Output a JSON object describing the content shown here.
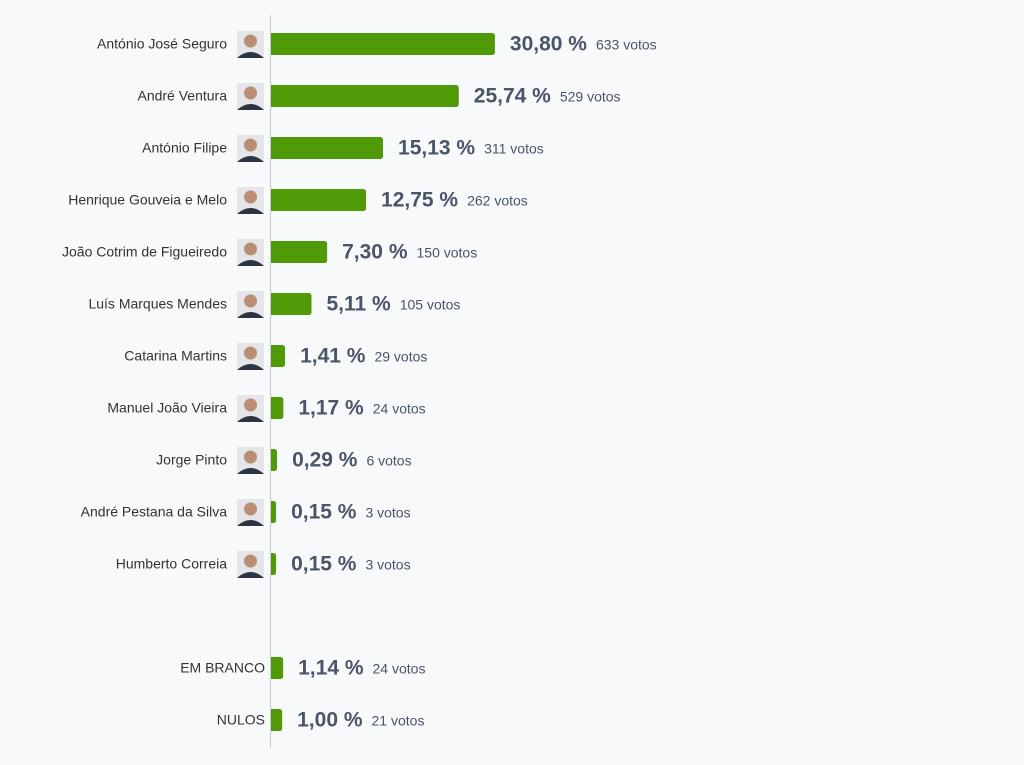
{
  "chart_data": [
    {
      "type": "bar",
      "orientation": "horizontal",
      "color": "#4f9a06",
      "photos": true,
      "categories": [
        "António José Seguro",
        "André Ventura",
        "António Filipe",
        "Henrique Gouveia e Melo",
        "João Cotrim de Figueiredo",
        "Luís Marques Mendes",
        "Catarina Martins",
        "Manuel João Vieira",
        "Jorge Pinto",
        "André Pestana da Silva",
        "Humberto Correia"
      ],
      "values": [
        30.8,
        25.74,
        15.13,
        12.75,
        7.3,
        5.11,
        1.41,
        1.17,
        0.29,
        0.15,
        0.15
      ],
      "value_labels": [
        "30,80 %",
        "25,74 %",
        "15,13 %",
        "12,75 %",
        "7,30 %",
        "5,11 %",
        "1,41 %",
        "1,17 %",
        "0,29 %",
        "0,15 %",
        "0,15 %"
      ],
      "votes": [
        633,
        529,
        311,
        262,
        150,
        105,
        29,
        24,
        6,
        3,
        3
      ],
      "votes_labels": [
        "633 votos",
        "529 votos",
        "311 votos",
        "262 votos",
        "150 votos",
        "105 votos",
        "29 votos",
        "24 votos",
        "6 votos",
        "3 votos",
        "3 votos"
      ]
    },
    {
      "type": "bar",
      "orientation": "horizontal",
      "color": "#4f9a06",
      "photos": false,
      "categories": [
        "EM BRANCO",
        "NULOS"
      ],
      "values": [
        1.14,
        1.0
      ],
      "value_labels": [
        "1,14 %",
        "1,00 %"
      ],
      "votes": [
        24,
        21
      ],
      "votes_labels": [
        "24 votos",
        "21 votos"
      ]
    }
  ]
}
